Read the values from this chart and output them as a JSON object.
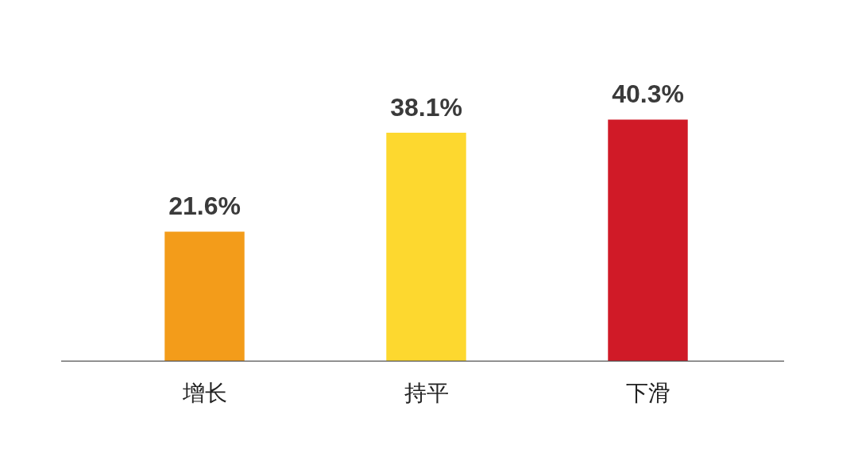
{
  "chart_data": {
    "type": "bar",
    "categories": [
      "增长",
      "持平",
      "下滑"
    ],
    "values": [
      21.6,
      38.1,
      40.3
    ],
    "colors": [
      "#f39c1a",
      "#fdd82f",
      "#d01a27"
    ],
    "value_labels": [
      "21.6%",
      "38.1%",
      "40.3%"
    ],
    "tick_labels": "x",
    "grid": false,
    "legend": false
  }
}
